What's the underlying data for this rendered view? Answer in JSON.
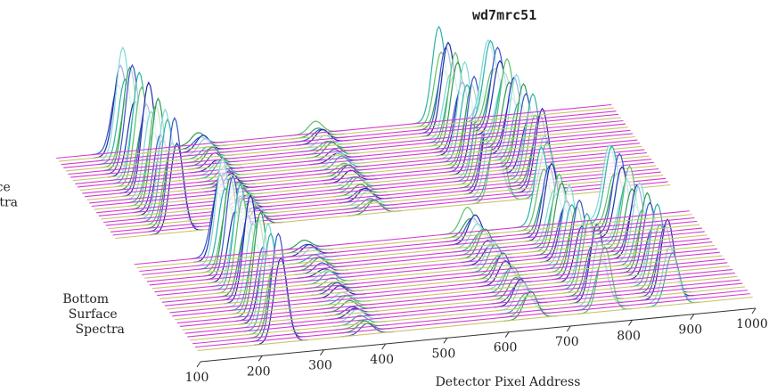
{
  "chart_data": {
    "type": "waterfall",
    "title": "wd7mrc51",
    "xlabel": "Detector Pixel Address",
    "xlim": [
      100,
      1000
    ],
    "xticks": [
      100,
      200,
      300,
      400,
      500,
      600,
      700,
      800,
      900,
      1000
    ],
    "zlim": [
      0,
      120
    ],
    "series": [
      {
        "name": "Top Surface Spectra",
        "x": [
          200,
          330,
          520,
          720,
          800
        ],
        "values": [
          100,
          15,
          12,
          85,
          75
        ],
        "color": "#2e8b57"
      },
      {
        "name": "Bottom Surface Spectra",
        "x": [
          235,
          375,
          640,
          760,
          870
        ],
        "values": [
          95,
          10,
          25,
          70,
          72
        ],
        "color": "#1f3fbf"
      }
    ]
  }
}
